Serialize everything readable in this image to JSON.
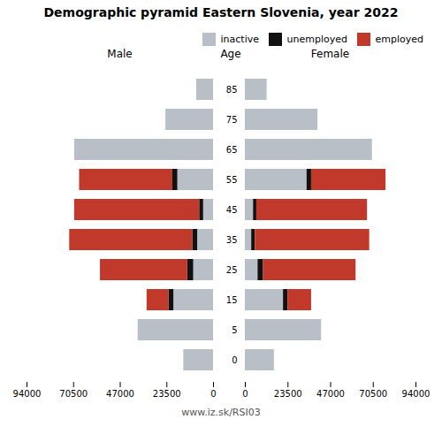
{
  "chart_data": [
    {
      "type": "bar",
      "orientation": "horizontal",
      "stacked": true,
      "title": "Demographic pyramid Eastern Slovenia, year 2022",
      "xlabel": "Male",
      "categories": [
        "0",
        "5",
        "15",
        "25",
        "35",
        "45",
        "55",
        "65",
        "75",
        "85"
      ],
      "series": [
        {
          "name": "inactive",
          "color": "#b8bfc7",
          "values": [
            15000,
            38000,
            20000,
            10000,
            8000,
            5000,
            18000,
            70000,
            24000,
            8500
          ]
        },
        {
          "name": "unemployed",
          "color": "#111111",
          "values": [
            0,
            0,
            2500,
            3000,
            2500,
            2000,
            2500,
            0,
            0,
            0
          ]
        },
        {
          "name": "employed",
          "color": "#c0392b",
          "values": [
            0,
            0,
            11000,
            44000,
            62000,
            63000,
            47000,
            0,
            0,
            0
          ]
        }
      ],
      "xlim": [
        94000,
        0
      ],
      "xticks": [
        0,
        23500,
        47000,
        70500,
        94000
      ],
      "annotations": [
        "www.iz.sk/RSI03"
      ]
    },
    {
      "type": "bar",
      "orientation": "horizontal",
      "stacked": true,
      "xlabel": "Female",
      "ylabel": "Age",
      "categories": [
        "0",
        "5",
        "15",
        "25",
        "35",
        "45",
        "55",
        "65",
        "75",
        "85"
      ],
      "series": [
        {
          "name": "inactive",
          "color": "#b8bfc7",
          "values": [
            16000,
            42000,
            21000,
            7000,
            3500,
            4500,
            34000,
            70000,
            40000,
            12000
          ]
        },
        {
          "name": "unemployed",
          "color": "#111111",
          "values": [
            0,
            0,
            2500,
            3000,
            2000,
            1800,
            2500,
            0,
            0,
            0
          ]
        },
        {
          "name": "employed",
          "color": "#c0392b",
          "values": [
            0,
            0,
            13000,
            51000,
            63000,
            61000,
            41000,
            0,
            0,
            0
          ]
        }
      ],
      "xlim": [
        0,
        94000
      ],
      "xticks": [
        0,
        23500,
        47000,
        70500,
        94000
      ],
      "legend": "upper right"
    }
  ]
}
